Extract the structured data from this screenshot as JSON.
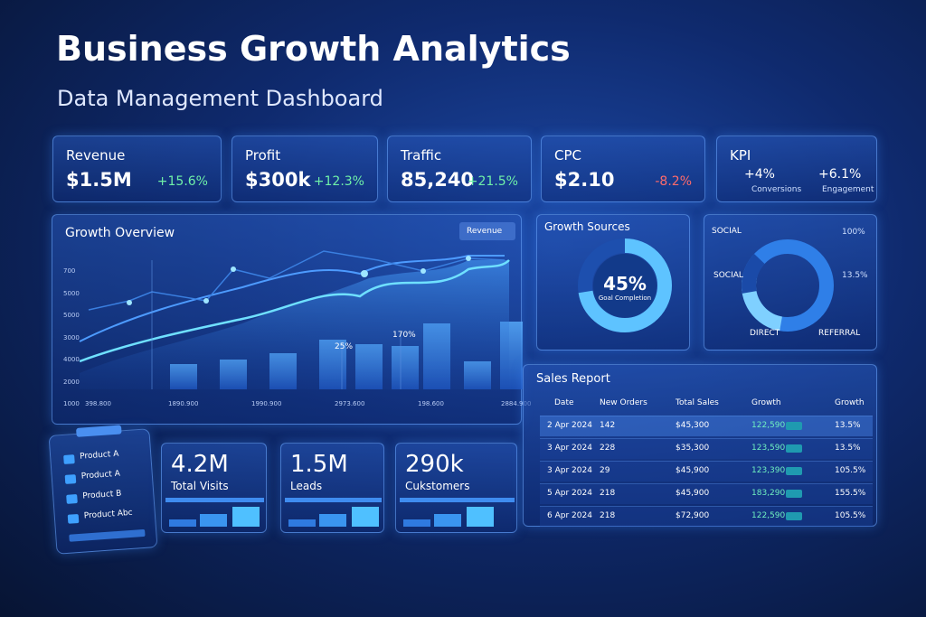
{
  "header": {
    "title": "Business Growth Analytics",
    "subtitle": "Data Management Dashboard"
  },
  "kpis": [
    {
      "label": "Revenue",
      "value": "$1.5M",
      "change": "+15.6%"
    },
    {
      "label": "Profit",
      "value": "$300k",
      "change": "+12.3%"
    },
    {
      "label": "Traffic",
      "value": "85,240",
      "change": "+21.5%"
    },
    {
      "label": "CPC",
      "value": "$2.10",
      "change": "-8.2%"
    }
  ],
  "kpi_summary": {
    "label": "KPI",
    "items": [
      {
        "value": "+4%",
        "label": "Conversions"
      },
      {
        "value": "+6.1%",
        "label": "Engagement"
      }
    ]
  },
  "growth_overview": {
    "title": "Growth Overview",
    "button": "Revenue",
    "y_labels": [
      "700",
      "5000",
      "5000",
      "3000",
      "4000",
      "2000",
      "1000"
    ],
    "x_labels": [
      "398.800",
      "1890.900",
      "1990.900",
      "2973.600",
      "198.600",
      "2884.900"
    ],
    "annotations": [
      "25%",
      "170%"
    ]
  },
  "growth_sources": {
    "title": "Growth Sources",
    "center_value": "45%",
    "center_label": "Goal Completion"
  },
  "channels": {
    "labels": [
      "SOCIAL",
      "SOCIAL",
      "DIRECT",
      "REFERRAL"
    ],
    "values": [
      "100%",
      "13.5%"
    ]
  },
  "products": [
    "Product A",
    "Product A",
    "Product B",
    "Product Abc"
  ],
  "metrics": [
    {
      "value": "4.2M",
      "label": "Total Visits"
    },
    {
      "value": "1.5M",
      "label": "Leads"
    },
    {
      "value": "290k",
      "label": "Cukstomers"
    }
  ],
  "sales_report": {
    "title": "Sales Report",
    "columns": [
      "Date",
      "New Orders",
      "Total Sales",
      "Growth",
      "Growth"
    ],
    "rows": [
      [
        "2 Apr 2024",
        "142",
        "$45,300",
        "122,590",
        "13.5%"
      ],
      [
        "3 Apr 2024",
        "228",
        "$35,300",
        "123,590",
        "13.5%"
      ],
      [
        "3 Apr 2024",
        "29",
        "$45,900",
        "123,390",
        "105.5%"
      ],
      [
        "5 Apr 2024",
        "218",
        "$45,900",
        "183,290",
        "155.5%"
      ],
      [
        "6 Apr 2024",
        "218",
        "$72,900",
        "122,590",
        "105.5%"
      ]
    ]
  }
}
